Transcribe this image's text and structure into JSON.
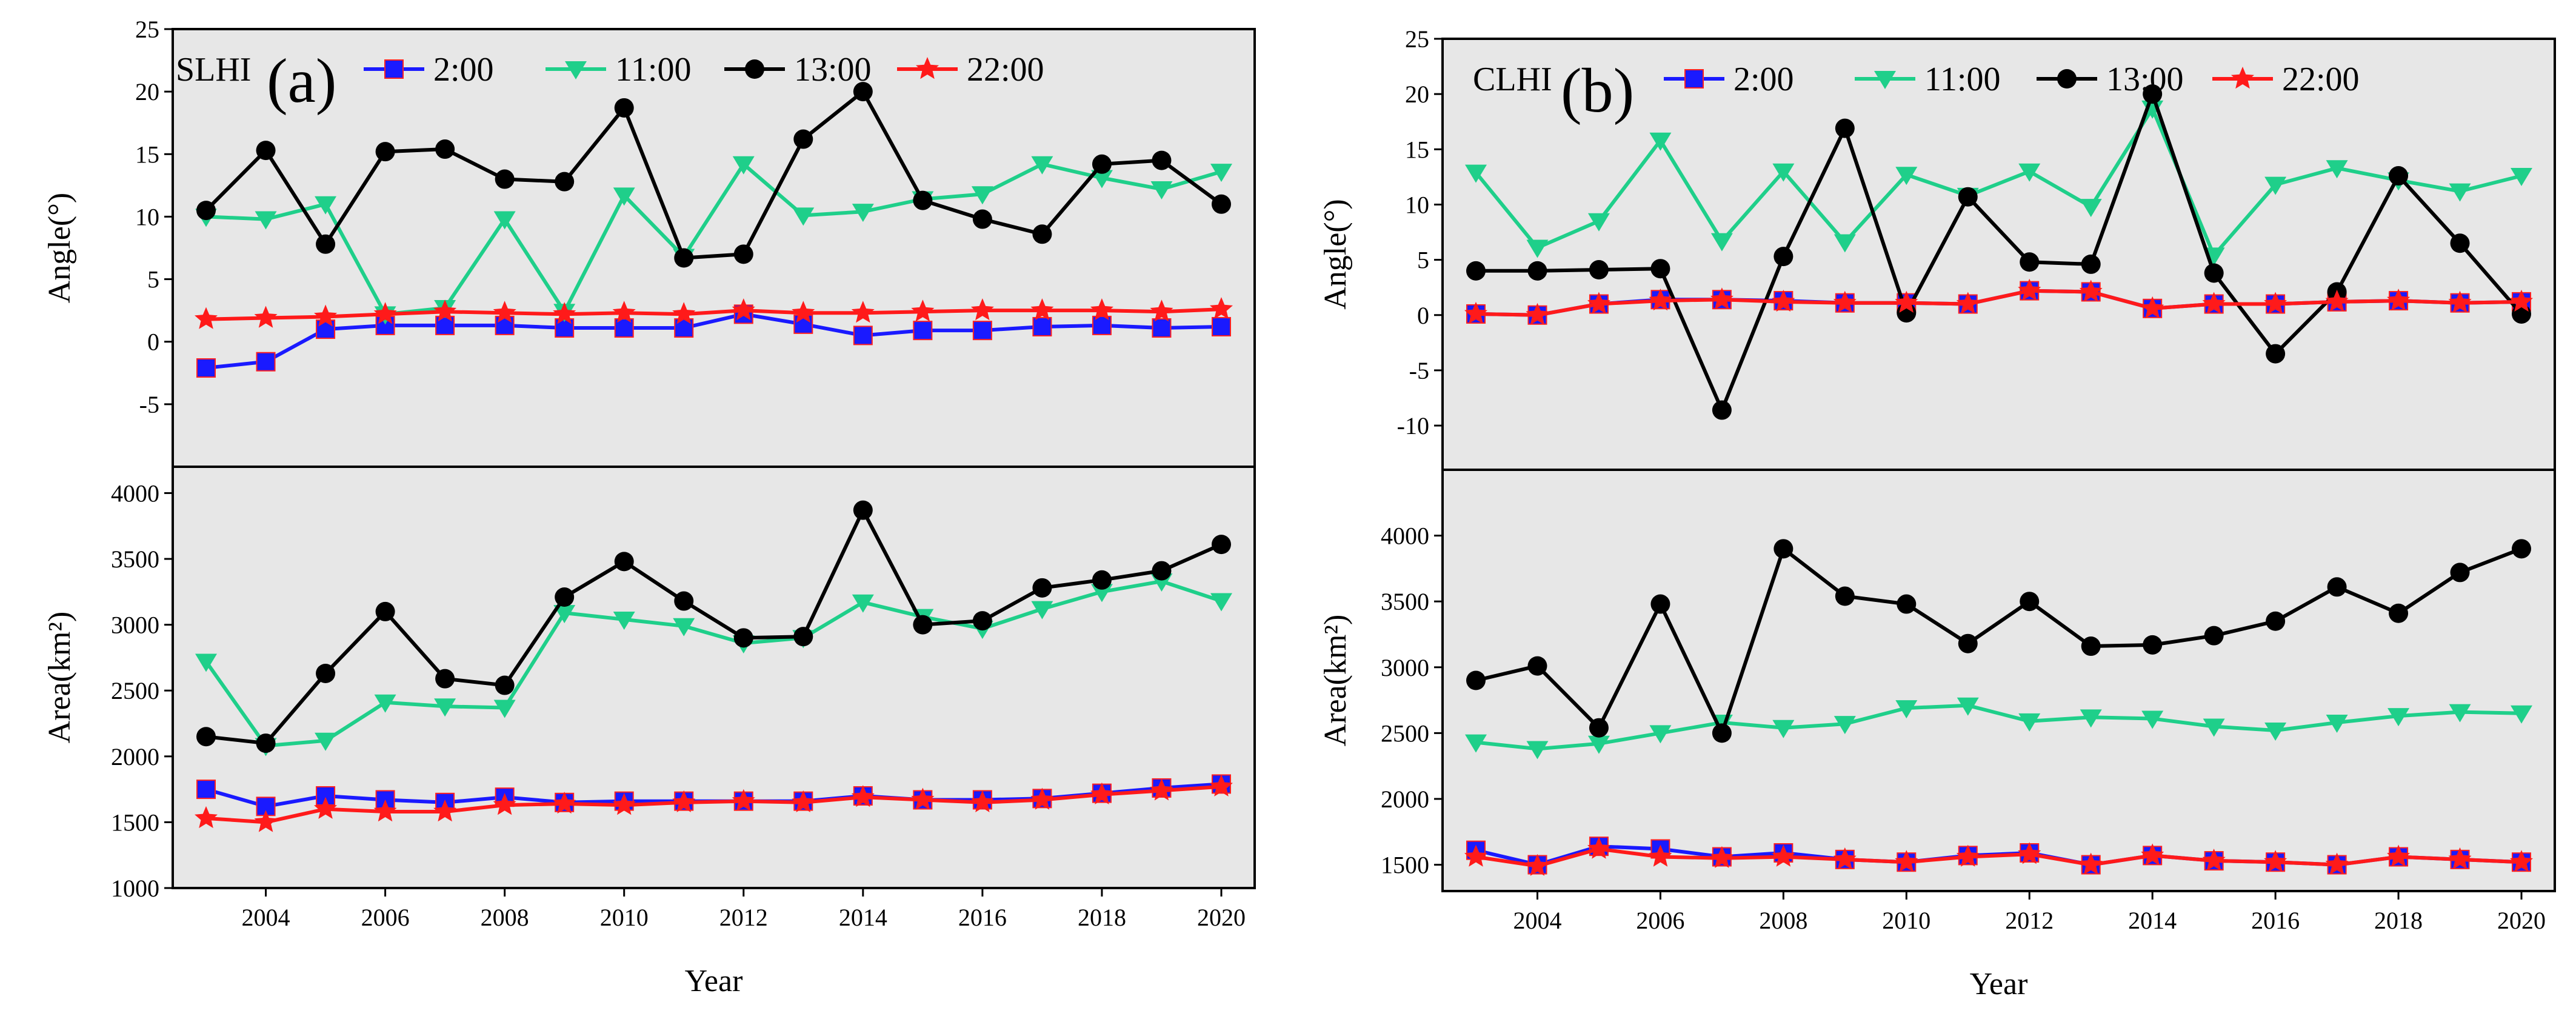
{
  "chart_data": [
    {
      "panel": "(a)",
      "type": "line",
      "tag": "SLHI",
      "xlabel": "Year",
      "x": [
        2003,
        2004,
        2005,
        2006,
        2007,
        2008,
        2009,
        2010,
        2011,
        2012,
        2013,
        2014,
        2015,
        2016,
        2017,
        2018,
        2019,
        2020
      ],
      "xticks": [
        2004,
        2006,
        2008,
        2010,
        2012,
        2014,
        2016,
        2018,
        2020
      ],
      "top": {
        "ylabel": "Angle(°)",
        "ylim": [
          -10,
          25
        ],
        "yticks": [
          -5,
          0,
          5,
          10,
          15,
          20,
          25
        ],
        "series": [
          {
            "name": "2:00",
            "color": "#1a1aff",
            "marker": "square",
            "values": [
              -2.1,
              -1.6,
              1.0,
              1.3,
              1.3,
              1.3,
              1.1,
              1.1,
              1.1,
              2.2,
              1.4,
              0.5,
              0.9,
              0.9,
              1.2,
              1.3,
              1.1,
              1.2
            ]
          },
          {
            "name": "11:00",
            "color": "#1fcf8a",
            "marker": "triangle-down",
            "values": [
              10.0,
              9.8,
              11.0,
              2.2,
              2.7,
              9.8,
              2.4,
              11.7,
              6.8,
              14.2,
              10.1,
              10.4,
              11.4,
              11.8,
              14.2,
              13.1,
              12.2,
              13.6
            ]
          },
          {
            "name": "13:00",
            "color": "#000000",
            "marker": "circle",
            "values": [
              10.5,
              15.3,
              7.8,
              15.2,
              15.4,
              13.0,
              12.8,
              18.7,
              6.7,
              7.0,
              16.2,
              20.0,
              11.3,
              9.8,
              8.6,
              14.2,
              14.5,
              11.0
            ]
          },
          {
            "name": "22:00",
            "color": "#ff1a1a",
            "marker": "star",
            "values": [
              1.8,
              1.9,
              2.0,
              2.2,
              2.4,
              2.3,
              2.2,
              2.3,
              2.2,
              2.5,
              2.3,
              2.3,
              2.4,
              2.5,
              2.5,
              2.5,
              2.4,
              2.6
            ]
          }
        ]
      },
      "bottom": {
        "ylabel": "Area(km²)",
        "ylim": [
          1000,
          4200
        ],
        "yticks": [
          1000,
          1500,
          2000,
          2500,
          3000,
          3500,
          4000
        ],
        "series": [
          {
            "name": "2:00",
            "color": "#1a1aff",
            "marker": "square",
            "values": [
              1750,
              1620,
              1700,
              1670,
              1650,
              1690,
              1650,
              1660,
              1660,
              1660,
              1660,
              1700,
              1670,
              1670,
              1680,
              1720,
              1760,
              1790
            ]
          },
          {
            "name": "11:00",
            "color": "#1fcf8a",
            "marker": "triangle-down",
            "values": [
              2720,
              2080,
              2120,
              2410,
              2380,
              2370,
              3090,
              3040,
              2990,
              2860,
              2900,
              3170,
              3060,
              2970,
              3120,
              3250,
              3330,
              3180
            ]
          },
          {
            "name": "13:00",
            "color": "#000000",
            "marker": "circle",
            "values": [
              2150,
              2100,
              2630,
              3100,
              2590,
              2540,
              3210,
              3480,
              3180,
              2900,
              2910,
              3870,
              3000,
              3030,
              3280,
              3340,
              3410,
              3610
            ]
          },
          {
            "name": "22:00",
            "color": "#ff1a1a",
            "marker": "star",
            "values": [
              1530,
              1500,
              1600,
              1580,
              1580,
              1630,
              1640,
              1630,
              1650,
              1660,
              1650,
              1690,
              1670,
              1650,
              1670,
              1710,
              1740,
              1770
            ]
          }
        ]
      }
    },
    {
      "panel": "(b)",
      "type": "line",
      "tag": "CLHI",
      "xlabel": "Year",
      "x": [
        2003,
        2004,
        2005,
        2006,
        2007,
        2008,
        2009,
        2010,
        2011,
        2012,
        2013,
        2014,
        2015,
        2016,
        2017,
        2018,
        2019,
        2020
      ],
      "xticks": [
        2004,
        2006,
        2008,
        2010,
        2012,
        2014,
        2016,
        2018,
        2020
      ],
      "top": {
        "ylabel": "Angle(°)",
        "ylim": [
          -14,
          25
        ],
        "yticks": [
          -10,
          -5,
          0,
          5,
          10,
          15,
          20,
          25
        ],
        "series": [
          {
            "name": "2:00",
            "color": "#1a1aff",
            "marker": "square",
            "values": [
              0.1,
              0.0,
              1.0,
              1.4,
              1.4,
              1.3,
              1.1,
              1.1,
              1.0,
              2.2,
              2.1,
              0.6,
              1.0,
              1.0,
              1.2,
              1.3,
              1.1,
              1.2
            ]
          },
          {
            "name": "11:00",
            "color": "#1fcf8a",
            "marker": "triangle-down",
            "values": [
              12.9,
              6.1,
              8.5,
              15.8,
              6.7,
              13.0,
              6.6,
              12.7,
              10.8,
              13.0,
              9.8,
              18.7,
              5.4,
              11.8,
              13.3,
              12.2,
              11.2,
              12.6
            ]
          },
          {
            "name": "13:00",
            "color": "#000000",
            "marker": "circle",
            "values": [
              4.0,
              4.0,
              4.1,
              4.2,
              -8.6,
              5.3,
              16.9,
              0.2,
              10.7,
              4.8,
              4.6,
              20.0,
              3.8,
              -3.5,
              2.1,
              12.6,
              6.5,
              0.1
            ]
          },
          {
            "name": "22:00",
            "color": "#ff1a1a",
            "marker": "star",
            "values": [
              0.1,
              0.0,
              1.0,
              1.3,
              1.4,
              1.2,
              1.1,
              1.1,
              1.0,
              2.2,
              2.1,
              0.6,
              1.0,
              1.0,
              1.2,
              1.3,
              1.1,
              1.2
            ]
          }
        ]
      },
      "bottom": {
        "ylabel": "Area(km²)",
        "ylim": [
          1300,
          4500
        ],
        "yticks": [
          1500,
          2000,
          2500,
          3000,
          3500,
          4000
        ],
        "series": [
          {
            "name": "2:00",
            "color": "#1a1aff",
            "marker": "square",
            "values": [
              1610,
              1500,
              1640,
              1620,
              1560,
              1590,
              1540,
              1520,
              1570,
              1590,
              1500,
              1570,
              1530,
              1520,
              1500,
              1560,
              1540,
              1520
            ]
          },
          {
            "name": "11:00",
            "color": "#1fcf8a",
            "marker": "triangle-down",
            "values": [
              2430,
              2380,
              2420,
              2500,
              2580,
              2540,
              2570,
              2690,
              2710,
              2590,
              2620,
              2610,
              2550,
              2520,
              2580,
              2630,
              2660,
              2650
            ]
          },
          {
            "name": "13:00",
            "color": "#000000",
            "marker": "circle",
            "values": [
              2900,
              3010,
              2540,
              3480,
              2500,
              3900,
              3540,
              3480,
              3180,
              3500,
              3160,
              3170,
              3240,
              3350,
              3610,
              3410,
              3720,
              3900
            ]
          },
          {
            "name": "22:00",
            "color": "#ff1a1a",
            "marker": "star",
            "values": [
              1560,
              1490,
              1620,
              1560,
              1550,
              1560,
              1540,
              1520,
              1560,
              1580,
              1500,
              1570,
              1530,
              1520,
              1500,
              1560,
              1540,
              1520
            ]
          }
        ]
      }
    }
  ]
}
